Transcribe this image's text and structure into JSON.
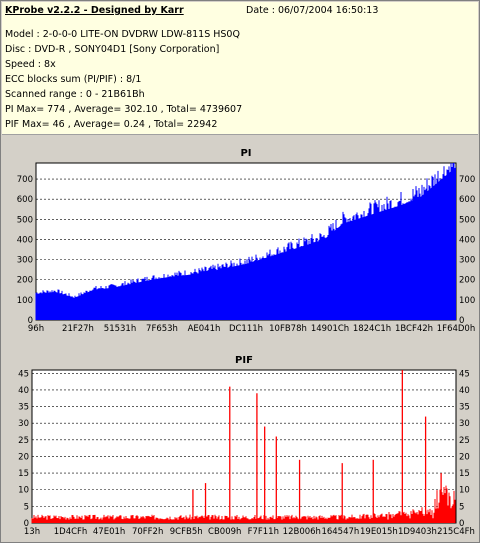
{
  "info": {
    "title": "KProbe v2.2.2 - Designed by Karr",
    "date": "Date : 06/07/2004 16:50:13",
    "lines": [
      "Model : 2-0-0-0 LITE-ON DVDRW LDW-811S   HS0Q",
      "Disc : DVD-R , SONY04D1 [Sony Corporation]",
      "Speed : 8x",
      "ECC blocks sum (PI/PIF) : 8/1",
      "Scanned range : 0 - 21B61Bh",
      "PI Max= 774 , Average= 302.10 , Total= 4739607",
      "PIF Max= 46 , Average= 0.24 , Total= 22942"
    ]
  },
  "colors": {
    "pi": "#0000ff",
    "pif": "#ff0000",
    "plot_bg": "#ffffff",
    "panel_bg": "#d4d0c8",
    "info_bg": "#ffffe1"
  },
  "chart_data": [
    {
      "type": "area",
      "title": "PI",
      "ylim": [
        0,
        780
      ],
      "yticks": [
        0,
        100,
        200,
        300,
        400,
        500,
        600,
        700
      ],
      "xlim": [
        0,
        2186779
      ],
      "xtick_labels": [
        "96h",
        "21F27h",
        "51531h",
        "7F653h",
        "AE041h",
        "DC111h",
        "10FB78h",
        "14901Ch",
        "1824C1h",
        "1BCF42h",
        "1F64D0h"
      ],
      "x": [
        0,
        100000,
        200000,
        300000,
        400000,
        500000,
        600000,
        700000,
        800000,
        900000,
        1000000,
        1100000,
        1200000,
        1300000,
        1400000,
        1500000,
        1550000,
        1600000,
        1700000,
        1800000,
        1900000,
        2000000,
        2100000,
        2186779
      ],
      "values": [
        130,
        140,
        110,
        150,
        160,
        180,
        200,
        215,
        225,
        240,
        260,
        280,
        310,
        340,
        370,
        400,
        440,
        480,
        510,
        540,
        570,
        610,
        690,
        760
      ]
    },
    {
      "type": "bar",
      "title": "PIF",
      "ylim": [
        0,
        46
      ],
      "yticks": [
        0,
        5,
        10,
        15,
        20,
        25,
        30,
        35,
        40,
        45
      ],
      "xlim": [
        0,
        2186779
      ],
      "xtick_labels": [
        "13h",
        "1D4CFh",
        "47E01h",
        "70FF2h",
        "9CFB5h",
        "CB009h",
        "F7F11h",
        "12B006h",
        "164547h",
        "19E015h",
        "1D9403h",
        "215C4Fh"
      ],
      "spikes": [
        {
          "x": 830000,
          "y": 10
        },
        {
          "x": 895000,
          "y": 12
        },
        {
          "x": 1020000,
          "y": 41
        },
        {
          "x": 1160000,
          "y": 39
        },
        {
          "x": 1200000,
          "y": 29
        },
        {
          "x": 1260000,
          "y": 26
        },
        {
          "x": 1380000,
          "y": 19
        },
        {
          "x": 1600000,
          "y": 18
        },
        {
          "x": 1760000,
          "y": 19
        },
        {
          "x": 1910000,
          "y": 46
        },
        {
          "x": 2030000,
          "y": 32
        },
        {
          "x": 2110000,
          "y": 15
        }
      ]
    }
  ]
}
